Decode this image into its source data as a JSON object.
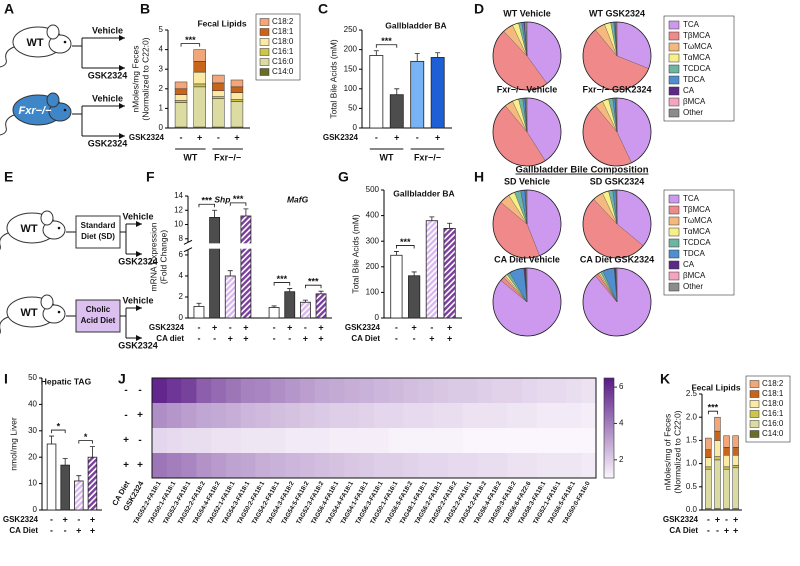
{
  "schematics": [
    {
      "panel": "A",
      "rows": [
        {
          "mouse": "WT",
          "arms": [
            "Vehicle",
            "GSK2324"
          ]
        },
        {
          "mouse": "Fxr−/−",
          "arms": [
            "Vehicle",
            "GSK2324"
          ]
        }
      ]
    },
    {
      "panel": "E",
      "rows": [
        {
          "mouse": "WT",
          "diet": [
            "Standard",
            "Diet (SD)"
          ],
          "arms": [
            "Vehicle",
            "GSK2324"
          ]
        },
        {
          "mouse": "WT",
          "diet": [
            "Cholic",
            "Acid Diet"
          ],
          "arms": [
            "Vehicle",
            "GSK2324"
          ]
        }
      ]
    }
  ],
  "chart_data": [
    {
      "type": "stacked_bar",
      "panel": "B",
      "title": "Fecal Lipids",
      "ylabel": [
        "nMoles/mg Feces",
        "(Normalized to C22:0)"
      ],
      "ylim": [
        0,
        5
      ],
      "yticks": [
        0,
        1,
        2,
        3,
        4,
        5
      ],
      "series": [
        {
          "name": "C18:2",
          "color": "#f2a77a",
          "values": [
            0.35,
            0.6,
            0.4,
            0.35
          ]
        },
        {
          "name": "C18:1",
          "color": "#c8651b",
          "values": [
            0.3,
            0.55,
            0.4,
            0.3
          ]
        },
        {
          "name": "C18:0",
          "color": "#fbe9a6",
          "values": [
            0.3,
            0.6,
            0.3,
            0.35
          ]
        },
        {
          "name": "C16:1",
          "color": "#cfc54a",
          "values": [
            0.1,
            0.15,
            0.1,
            0.1
          ]
        },
        {
          "name": "C16:0",
          "color": "#dcdca2",
          "values": [
            1.25,
            2.05,
            1.45,
            1.3
          ]
        },
        {
          "name": "C14:0",
          "color": "#6b6b2a",
          "values": [
            0.05,
            0.05,
            0.05,
            0.05
          ]
        }
      ],
      "rows": [
        {
          "name": "GSK2324",
          "values": [
            "-",
            "+",
            "-",
            "+"
          ]
        }
      ],
      "groups": [
        "WT",
        "Fxr−/−"
      ],
      "significance": [
        {
          "label": "***",
          "bars": [
            0,
            1
          ]
        }
      ]
    },
    {
      "type": "bar",
      "panel": "C",
      "title": "Gallbladder BA",
      "ylabel": [
        "Total Bile Acids (mM)"
      ],
      "ylim": [
        0,
        250
      ],
      "yticks": [
        0,
        50,
        100,
        150,
        200,
        250
      ],
      "values": [
        185,
        85,
        170,
        180
      ],
      "errors": [
        12,
        15,
        20,
        12
      ],
      "colors": [
        "#ffffff",
        "#4d4d4d",
        "#78b4f5",
        "#1f5fd6"
      ],
      "rows": [
        {
          "name": "GSK2324",
          "values": [
            "-",
            "+",
            "-",
            "+"
          ]
        }
      ],
      "groups": [
        "WT",
        "Fxr−/−"
      ],
      "significance": [
        {
          "label": "***",
          "bars": [
            0,
            1
          ]
        }
      ]
    },
    {
      "type": "pie",
      "panel": "D",
      "categories": [
        "TCA",
        "TβMCA",
        "TωMCA",
        "TαMCA",
        "TCDCA",
        "TDCA",
        "CA",
        "βMCA",
        "Other"
      ],
      "colors": [
        "#cc99ee",
        "#f08a8a",
        "#f5b97f",
        "#f7f08a",
        "#6fb3a3",
        "#4f8fd0",
        "#5b2a86",
        "#f4a3c0",
        "#8c8c8c"
      ],
      "pies": [
        {
          "name": "WT Vehicle",
          "values": [
            40,
            48,
            5,
            3,
            1.5,
            1,
            0.5,
            0.5,
            0.5
          ]
        },
        {
          "name": "WT GSK2324",
          "values": [
            31,
            58,
            5,
            3,
            1.5,
            0.5,
            0.3,
            0.4,
            0.3
          ]
        },
        {
          "name": "Fxr−/− Vehicle",
          "values": [
            41,
            48,
            4,
            3,
            2,
            1,
            0.3,
            0.4,
            0.3
          ]
        },
        {
          "name": "Fxr−/− GSK2324",
          "values": [
            43,
            46,
            4,
            3,
            2,
            1,
            0.3,
            0.4,
            0.3
          ]
        }
      ]
    },
    {
      "type": "bar",
      "panel": "F",
      "ylabel": [
        "mRNA Expression",
        "(Fold Change)"
      ],
      "ylim": [
        0,
        14
      ],
      "axis_break": [
        6.5,
        7.5
      ],
      "yticks": [
        0,
        2,
        4,
        6,
        8,
        10,
        12,
        14
      ],
      "panels": [
        {
          "name": "Shp",
          "values": [
            1.1,
            11,
            4,
            11.2
          ],
          "errors": [
            0.3,
            1,
            0.5,
            1
          ]
        },
        {
          "name": "MafG",
          "values": [
            1,
            2.5,
            1.5,
            2.3
          ],
          "errors": [
            0.15,
            0.3,
            0.2,
            0.25
          ]
        }
      ],
      "colors": [
        "#ffffff",
        "#4d4d4d",
        "#d9b8ee",
        "#7a3e9d"
      ],
      "hatch": [
        false,
        false,
        true,
        true
      ],
      "rows": [
        {
          "name": "GSK2324",
          "values": [
            "-",
            "+",
            "-",
            "+",
            "-",
            "+",
            "-",
            "+"
          ]
        },
        {
          "name": "CA diet",
          "values": [
            "-",
            "-",
            "+",
            "+",
            "-",
            "-",
            "+",
            "+"
          ]
        }
      ],
      "significance": [
        {
          "label": "***",
          "bars": [
            0,
            1
          ]
        },
        {
          "label": "***",
          "bars": [
            2,
            3
          ]
        },
        {
          "label": "***",
          "bars": [
            4,
            5
          ]
        },
        {
          "label": "***",
          "bars": [
            6,
            7
          ]
        }
      ]
    },
    {
      "type": "bar",
      "panel": "G",
      "title": "Gallbladder BA",
      "ylabel": [
        "Total Bile Acids (mM)"
      ],
      "ylim": [
        0,
        500
      ],
      "yticks": [
        0,
        100,
        200,
        300,
        400,
        500
      ],
      "values": [
        245,
        165,
        380,
        350
      ],
      "errors": [
        15,
        15,
        15,
        20
      ],
      "colors": [
        "#ffffff",
        "#4d4d4d",
        "#d9b8ee",
        "#7a3e9d"
      ],
      "hatch": [
        false,
        false,
        true,
        true
      ],
      "rows": [
        {
          "name": "GSK2324",
          "values": [
            "-",
            "+",
            "-",
            "+"
          ]
        },
        {
          "name": "CA Diet",
          "values": [
            "-",
            "-",
            "+",
            "+"
          ]
        }
      ],
      "significance": [
        {
          "label": "***",
          "bars": [
            0,
            1
          ]
        }
      ]
    },
    {
      "type": "pie",
      "panel": "H",
      "title": "Gallbladder Bile Composition",
      "categories": [
        "TCA",
        "TβMCA",
        "TωMCA",
        "TαMCA",
        "TCDCA",
        "TDCA",
        "CA",
        "βMCA",
        "Other"
      ],
      "colors": [
        "#cc99ee",
        "#f08a8a",
        "#f5b97f",
        "#f7f08a",
        "#6fb3a3",
        "#4f8fd0",
        "#5b2a86",
        "#f4a3c0",
        "#8c8c8c"
      ],
      "pies": [
        {
          "name": "SD Vehicle",
          "values": [
            44,
            42,
            5,
            3,
            3,
            2,
            0.3,
            0.4,
            0.3
          ]
        },
        {
          "name": "SD GSK2324",
          "values": [
            36,
            52,
            5,
            3,
            2,
            1.5,
            0.1,
            0.3,
            0.1
          ]
        },
        {
          "name": "CA Diet Vehicle",
          "values": [
            86,
            2,
            1,
            1,
            1.5,
            7,
            1,
            0.3,
            0.2
          ]
        },
        {
          "name": "CA Diet GSK2324",
          "values": [
            89,
            1.5,
            0.8,
            0.7,
            1.2,
            5.5,
            0.8,
            0.3,
            0.2
          ]
        }
      ]
    },
    {
      "type": "bar",
      "panel": "I",
      "title": "Hepatic TAG",
      "ylabel": [
        "nmol/mg Liver"
      ],
      "ylim": [
        0,
        50
      ],
      "yticks": [
        0,
        10,
        20,
        30,
        40,
        50
      ],
      "values": [
        25,
        17,
        11,
        20
      ],
      "errors": [
        3,
        2.5,
        2,
        4
      ],
      "colors": [
        "#ffffff",
        "#4d4d4d",
        "#d9b8ee",
        "#7a3e9d"
      ],
      "hatch": [
        false,
        false,
        true,
        true
      ],
      "rows": [
        {
          "name": "GSK2324",
          "values": [
            "-",
            "+",
            "-",
            "+"
          ]
        },
        {
          "name": "CA Diet",
          "values": [
            "-",
            "-",
            "+",
            "+"
          ]
        }
      ],
      "significance": [
        {
          "label": "*",
          "bars": [
            0,
            1
          ]
        },
        {
          "label": "*",
          "bars": [
            2,
            3
          ]
        }
      ]
    },
    {
      "type": "heatmap",
      "panel": "J",
      "row_factors": [
        "CA Diet",
        "GSK2324"
      ],
      "columns": [
        "TAG52:2-FA18:1",
        "TAG50:1-FA18:1",
        "TAG52:3-FA18:1",
        "TAG52:2-FA18:2",
        "TAG54:4-FA18:2",
        "TAG52:1-FA18:1",
        "TAG54:3-FA18:1",
        "TAG50:2-FA18:1",
        "TAG54:2-FA18:1",
        "TAG54:3-FA18:2",
        "TAG54:5-FA18:2",
        "TAG52:3-FA18:2",
        "TAG56:4-FA18:1",
        "TAG54:4-FA18:1",
        "TAG54:1-FA18:1",
        "TAG56:3-FA18:1",
        "TAG50:1-FA16:1",
        "TAG56:5-FA18:2",
        "TAG48:1-FA18:1",
        "TAG56:2-FA18:1",
        "TAG50:2-FA18:2",
        "TAG52:2-FA16:1",
        "TAG54:2-FA18:2",
        "TAG56:4-FA18:2",
        "TAG50:3-FA18:2",
        "TAG56:6-FA22:6",
        "TAG58:3-FA18:1",
        "TAG52:1-FA16:1",
        "TAG56:5-FA18:1",
        "TAG50:0-FA16:0"
      ],
      "rows": [
        {
          "labels": [
            "-",
            "-"
          ],
          "values": [
            6.2,
            5.8,
            5.5,
            4.8,
            4.5,
            4.2,
            3.9,
            3.8,
            3.6,
            3.4,
            3.2,
            3.0,
            2.9,
            2.8,
            2.7,
            2.6,
            2.5,
            2.4,
            2.3,
            2.2,
            2.1,
            2.1,
            2.0,
            1.9,
            1.9,
            1.8,
            1.7,
            1.7,
            1.6,
            1.5
          ]
        },
        {
          "labels": [
            "-",
            "+"
          ],
          "values": [
            3.6,
            3.4,
            3.2,
            3.0,
            2.9,
            2.8,
            2.6,
            2.5,
            2.4,
            2.3,
            2.2,
            2.1,
            2.0,
            2.0,
            1.9,
            1.8,
            1.8,
            1.7,
            1.7,
            1.6,
            1.6,
            1.5,
            1.5,
            1.5,
            1.4,
            1.4,
            1.3,
            1.3,
            1.3,
            1.2
          ]
        },
        {
          "labels": [
            "+",
            "-"
          ],
          "values": [
            1.8,
            1.7,
            1.6,
            1.6,
            1.5,
            1.5,
            1.4,
            1.4,
            1.4,
            1.3,
            1.3,
            1.3,
            1.2,
            1.2,
            1.2,
            1.2,
            1.1,
            1.1,
            1.1,
            1.1,
            1.1,
            1.0,
            1.0,
            1.0,
            1.0,
            1.0,
            1.0,
            1.0,
            1.0,
            1.0
          ]
        },
        {
          "labels": [
            "+",
            "+"
          ],
          "values": [
            4.2,
            4.0,
            3.8,
            3.5,
            3.3,
            3.1,
            3.0,
            2.8,
            2.7,
            2.6,
            2.5,
            2.4,
            2.3,
            2.2,
            2.1,
            2.0,
            2.0,
            1.9,
            1.8,
            1.8,
            1.7,
            1.7,
            1.6,
            1.6,
            1.5,
            1.5,
            1.4,
            1.4,
            1.4,
            1.3
          ]
        }
      ],
      "zlim": [
        1,
        6.5
      ],
      "zticks": [
        2,
        4,
        6
      ],
      "colors": [
        "#fbf6fd",
        "#5a1a87"
      ]
    },
    {
      "type": "stacked_bar",
      "panel": "K",
      "title": "Fecal Lipids",
      "ylabel": [
        "nMoles/mg of Feces",
        "(Normalized to C22:0)"
      ],
      "ylim": [
        0,
        2.5
      ],
      "yticks": [
        {
          "value": 0,
          "label": "0.0"
        },
        0.5,
        {
          "value": 1,
          "label": "1.0"
        },
        1.5,
        {
          "value": 2,
          "label": "2.0"
        },
        2.5
      ],
      "series": [
        {
          "name": "C18:2",
          "color": "#f2a77a",
          "values": [
            0.25,
            0.3,
            0.25,
            0.25
          ]
        },
        {
          "name": "C18:1",
          "color": "#c8651b",
          "values": [
            0.17,
            0.2,
            0.17,
            0.17
          ]
        },
        {
          "name": "C18:0",
          "color": "#fbe9a6",
          "values": [
            0.2,
            0.35,
            0.25,
            0.22
          ]
        },
        {
          "name": "C16:1",
          "color": "#cfc54a",
          "values": [
            0.05,
            0.07,
            0.05,
            0.05
          ]
        },
        {
          "name": "C16:0",
          "color": "#dcdca2",
          "values": [
            0.85,
            1.05,
            0.85,
            0.88
          ]
        },
        {
          "name": "C14:0",
          "color": "#6b6b2a",
          "values": [
            0.03,
            0.03,
            0.03,
            0.03
          ]
        }
      ],
      "rows": [
        {
          "name": "GSK2324",
          "values": [
            "-",
            "+",
            "-",
            "+"
          ]
        },
        {
          "name": "CA Diet",
          "values": [
            "-",
            "-",
            "+",
            "+"
          ]
        }
      ],
      "significance": [
        {
          "label": "***",
          "bars": [
            0,
            1
          ]
        }
      ]
    }
  ]
}
